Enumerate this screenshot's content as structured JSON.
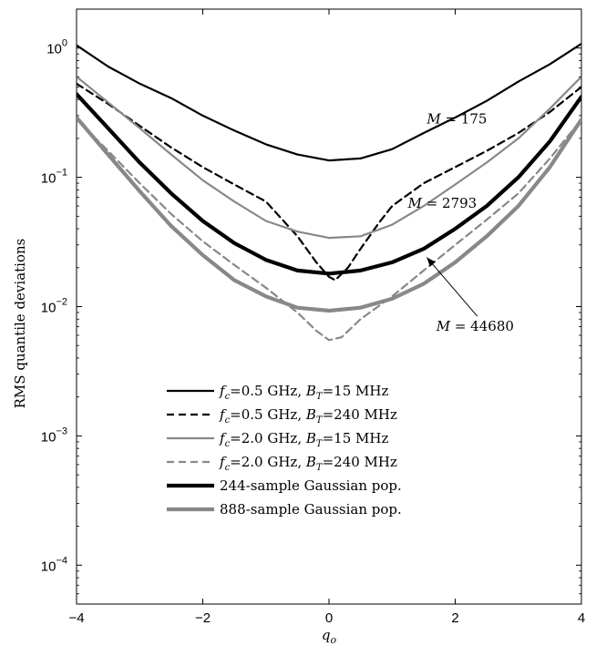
{
  "chart_data": {
    "type": "line",
    "title": "",
    "xlabel": "q_o",
    "ylabel": "RMS quantile deviations",
    "xlim": [
      -4,
      4
    ],
    "ylim": [
      5e-05,
      2
    ],
    "yscale": "log",
    "grid": false,
    "legend_position": "lower-center",
    "x_ticks": [
      {
        "value": -4,
        "label": "−4"
      },
      {
        "value": -2,
        "label": "−2"
      },
      {
        "value": 0,
        "label": "0"
      },
      {
        "value": 2,
        "label": "2"
      },
      {
        "value": 4,
        "label": "4"
      }
    ],
    "y_ticks": [
      {
        "value": 0.0001,
        "base": "10",
        "exp": "−4"
      },
      {
        "value": 0.001,
        "base": "10",
        "exp": "−3"
      },
      {
        "value": 0.01,
        "base": "10",
        "exp": "−2"
      },
      {
        "value": 0.1,
        "base": "10",
        "exp": "−1"
      },
      {
        "value": 1,
        "base": "10",
        "exp": "0"
      }
    ],
    "series": [
      {
        "name": "fc=0.5 GHz, BT=15 MHz",
        "legend": {
          "f": "f",
          "fsub": "c",
          "mid": "=0.5 GHz, ",
          "b": "B",
          "bsub": "T",
          "rest": "=15 MHz"
        },
        "color": "#000000",
        "width": 2.2,
        "dash": "",
        "points": [
          [
            -4,
            1.05
          ],
          [
            -3.5,
            0.72
          ],
          [
            -3,
            0.53
          ],
          [
            -2.5,
            0.41
          ],
          [
            -2,
            0.3
          ],
          [
            -1.5,
            0.23
          ],
          [
            -1,
            0.18
          ],
          [
            -0.5,
            0.15
          ],
          [
            0,
            0.135
          ],
          [
            0.5,
            0.14
          ],
          [
            1,
            0.165
          ],
          [
            1.5,
            0.22
          ],
          [
            2,
            0.29
          ],
          [
            2.5,
            0.39
          ],
          [
            3,
            0.55
          ],
          [
            3.5,
            0.75
          ],
          [
            4,
            1.08
          ]
        ]
      },
      {
        "name": "fc=0.5 GHz, BT=240 MHz",
        "legend": {
          "f": "f",
          "fsub": "c",
          "mid": "=0.5 GHz, ",
          "b": "B",
          "bsub": "T",
          "rest": "=240 MHz"
        },
        "color": "#000000",
        "width": 2.2,
        "dash": "8,5",
        "points": [
          [
            -4,
            0.53
          ],
          [
            -3.5,
            0.37
          ],
          [
            -3,
            0.25
          ],
          [
            -2.5,
            0.17
          ],
          [
            -2,
            0.12
          ],
          [
            -1.5,
            0.088
          ],
          [
            -1,
            0.065
          ],
          [
            -0.5,
            0.035
          ],
          [
            -0.2,
            0.022
          ],
          [
            0,
            0.017
          ],
          [
            0.1,
            0.016
          ],
          [
            0.3,
            0.02
          ],
          [
            0.5,
            0.028
          ],
          [
            0.8,
            0.045
          ],
          [
            1,
            0.06
          ],
          [
            1.5,
            0.09
          ],
          [
            2,
            0.12
          ],
          [
            2.5,
            0.16
          ],
          [
            3,
            0.22
          ],
          [
            3.5,
            0.32
          ],
          [
            4,
            0.5
          ]
        ]
      },
      {
        "name": "fc=2.0 GHz, BT=15 MHz",
        "legend": {
          "f": "f",
          "fsub": "c",
          "mid": "=2.0 GHz, ",
          "b": "B",
          "bsub": "T",
          "rest": "=15 MHz"
        },
        "color": "#888888",
        "width": 2.2,
        "dash": "",
        "points": [
          [
            -4,
            0.6
          ],
          [
            -3.5,
            0.38
          ],
          [
            -3,
            0.24
          ],
          [
            -2.5,
            0.15
          ],
          [
            -2,
            0.095
          ],
          [
            -1.5,
            0.065
          ],
          [
            -1,
            0.046
          ],
          [
            -0.5,
            0.038
          ],
          [
            0,
            0.034
          ],
          [
            0.5,
            0.035
          ],
          [
            1,
            0.043
          ],
          [
            1.5,
            0.06
          ],
          [
            2,
            0.088
          ],
          [
            2.5,
            0.13
          ],
          [
            3,
            0.2
          ],
          [
            3.5,
            0.34
          ],
          [
            4,
            0.6
          ]
        ]
      },
      {
        "name": "fc=2.0 GHz, BT=240 MHz",
        "legend": {
          "f": "f",
          "fsub": "c",
          "mid": "=2.0 GHz, ",
          "b": "B",
          "bsub": "T",
          "rest": "=240 MHz"
        },
        "color": "#888888",
        "width": 2.2,
        "dash": "8,5",
        "points": [
          [
            -4,
            0.28
          ],
          [
            -3.5,
            0.16
          ],
          [
            -3,
            0.09
          ],
          [
            -2.5,
            0.052
          ],
          [
            -2,
            0.032
          ],
          [
            -1.5,
            0.021
          ],
          [
            -1,
            0.014
          ],
          [
            -0.5,
            0.009
          ],
          [
            -0.2,
            0.0065
          ],
          [
            0,
            0.0055
          ],
          [
            0.2,
            0.0058
          ],
          [
            0.5,
            0.008
          ],
          [
            1,
            0.012
          ],
          [
            1.5,
            0.019
          ],
          [
            2,
            0.03
          ],
          [
            2.5,
            0.047
          ],
          [
            3,
            0.075
          ],
          [
            3.5,
            0.14
          ],
          [
            4,
            0.28
          ]
        ]
      },
      {
        "name": "244-sample Gaussian pop.",
        "legend": {
          "plain": "244-sample Gaussian pop."
        },
        "color": "#000000",
        "width": 4.2,
        "dash": "",
        "points": [
          [
            -4,
            0.44
          ],
          [
            -3.5,
            0.24
          ],
          [
            -3,
            0.13
          ],
          [
            -2.5,
            0.075
          ],
          [
            -2,
            0.046
          ],
          [
            -1.5,
            0.031
          ],
          [
            -1,
            0.023
          ],
          [
            -0.5,
            0.019
          ],
          [
            0,
            0.018
          ],
          [
            0.5,
            0.019
          ],
          [
            1,
            0.022
          ],
          [
            1.5,
            0.028
          ],
          [
            2,
            0.04
          ],
          [
            2.5,
            0.06
          ],
          [
            3,
            0.1
          ],
          [
            3.5,
            0.19
          ],
          [
            4,
            0.42
          ]
        ]
      },
      {
        "name": "888-sample Gaussian pop.",
        "legend": {
          "plain": "888-sample Gaussian pop."
        },
        "color": "#888888",
        "width": 4.2,
        "dash": "",
        "points": [
          [
            -4,
            0.29
          ],
          [
            -3.5,
            0.15
          ],
          [
            -3,
            0.078
          ],
          [
            -2.5,
            0.042
          ],
          [
            -2,
            0.025
          ],
          [
            -1.5,
            0.016
          ],
          [
            -1,
            0.012
          ],
          [
            -0.5,
            0.0098
          ],
          [
            0,
            0.0093
          ],
          [
            0.5,
            0.0098
          ],
          [
            1,
            0.0115
          ],
          [
            1.5,
            0.015
          ],
          [
            2,
            0.022
          ],
          [
            2.5,
            0.035
          ],
          [
            3,
            0.06
          ],
          [
            3.5,
            0.12
          ],
          [
            4,
            0.28
          ]
        ]
      }
    ],
    "annotations": [
      {
        "text_var": "M",
        "text_rest": " = 175",
        "x": 1.55,
        "y": 0.26
      },
      {
        "text_var": "M",
        "text_rest": " = 2793",
        "x": 1.25,
        "y": 0.058
      },
      {
        "text_var": "M",
        "text_rest": " = 44680",
        "x": 1.7,
        "y": 0.0065,
        "arrow_to": [
          1.55,
          0.024
        ]
      }
    ]
  }
}
